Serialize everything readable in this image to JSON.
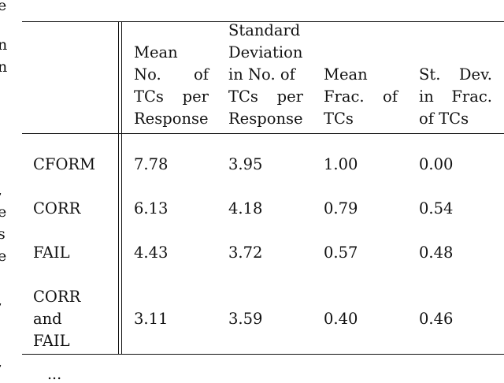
{
  "margin_fragments": [
    "e",
    "n",
    "n",
    ",",
    "e",
    "s",
    "e",
    ",",
    ","
  ],
  "bottom_fragment": "...",
  "table": {
    "column_headers": [
      [
        "Mean",
        "No. of",
        "TCs per",
        "Response"
      ],
      [
        "Standard",
        "Deviation",
        "in No. of",
        "TCs per",
        "Response"
      ],
      [
        "Mean",
        "Frac. of",
        "TCs"
      ],
      [
        "St. Dev.",
        "in Frac.",
        "of TCs"
      ]
    ],
    "rows": [
      {
        "label": [
          "CFORM"
        ],
        "values": [
          "7.78",
          "3.95",
          "1.00",
          "0.00"
        ]
      },
      {
        "label": [
          "CORR"
        ],
        "values": [
          "6.13",
          "4.18",
          "0.79",
          "0.54"
        ]
      },
      {
        "label": [
          "FAIL"
        ],
        "values": [
          "4.43",
          "3.72",
          "0.57",
          "0.48"
        ]
      },
      {
        "label": [
          "CORR",
          "and",
          "FAIL"
        ],
        "values": [
          "3.11",
          "3.59",
          "0.40",
          "0.46"
        ]
      }
    ]
  }
}
